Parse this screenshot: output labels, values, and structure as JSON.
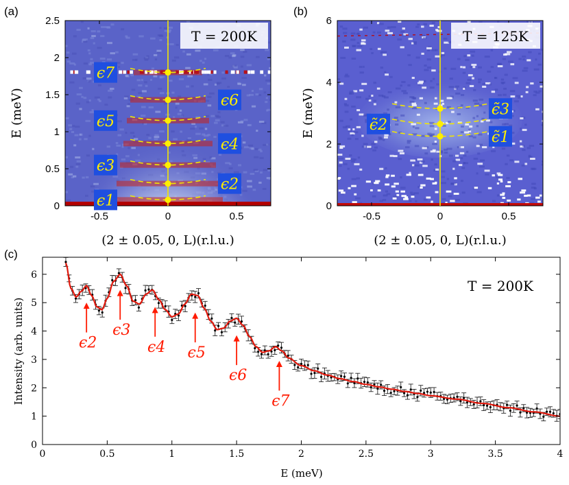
{
  "chart_data": [
    {
      "panel": "(a)",
      "type": "heatmap",
      "annotation": "T = 200K",
      "xlabel": "(2 ± 0.05, 0, L)(r.l.u.)",
      "ylabel": "E (meV)",
      "xlim": [
        -0.75,
        0.75
      ],
      "ylim": [
        0,
        2.5
      ],
      "xticks": [
        "-0.5",
        "0",
        "0.5"
      ],
      "xtick_values": [
        -0.5,
        0,
        0.5
      ],
      "yticks": [
        "0",
        "0.5",
        "1",
        "1.5",
        "2",
        "2.5"
      ],
      "ytick_values": [
        0,
        0.5,
        1,
        1.5,
        2,
        2.5
      ],
      "cut_position": 0,
      "mode_energies": [
        0.08,
        0.3,
        0.55,
        0.84,
        1.15,
        1.43,
        1.8
      ],
      "modes": [
        {
          "label": "ϵ1",
          "energy": 0.08,
          "side": "left"
        },
        {
          "label": "ϵ2",
          "energy": 0.3,
          "side": "right"
        },
        {
          "label": "ϵ3",
          "energy": 0.55,
          "side": "left"
        },
        {
          "label": "ϵ4",
          "energy": 0.84,
          "side": "right"
        },
        {
          "label": "ϵ5",
          "energy": 1.15,
          "side": "left"
        },
        {
          "label": "ϵ6",
          "energy": 1.43,
          "side": "right"
        },
        {
          "label": "ϵ7",
          "energy": 1.8,
          "side": "left"
        }
      ]
    },
    {
      "panel": "(b)",
      "type": "heatmap",
      "annotation": "T = 125K",
      "xlabel": "(2 ± 0.05, 0, L)(r.l.u.)",
      "ylabel": "E (meV)",
      "xlim": [
        -0.75,
        0.75
      ],
      "ylim": [
        0,
        6
      ],
      "xticks": [
        "-0.5",
        "0",
        "0.5"
      ],
      "xtick_values": [
        -0.5,
        0,
        0.5
      ],
      "yticks": [
        "0",
        "2",
        "4",
        "6"
      ],
      "ytick_values": [
        0,
        2,
        4,
        6
      ],
      "cut_position": 0,
      "mode_energies": [
        2.25,
        2.65,
        3.15
      ],
      "modes": [
        {
          "label": "ϵ̃1",
          "energy": 2.25,
          "side": "right"
        },
        {
          "label": "ϵ̃2",
          "energy": 2.65,
          "side": "left"
        },
        {
          "label": "ϵ̃3",
          "energy": 3.15,
          "side": "right"
        }
      ]
    },
    {
      "panel": "(c)",
      "type": "scatter",
      "annotation": "T = 200K",
      "xlabel": "E (meV)",
      "ylabel": "Intensity (arb. units)",
      "xlim": [
        0,
        4
      ],
      "ylim": [
        0,
        6.6
      ],
      "xticks": [
        "0",
        "0.5",
        "1",
        "1.5",
        "2",
        "2.5",
        "3",
        "3.5",
        "4"
      ],
      "xtick_values": [
        0,
        0.5,
        1,
        1.5,
        2,
        2.5,
        3,
        3.5,
        4
      ],
      "yticks": [
        "0",
        "1",
        "2",
        "3",
        "4",
        "5",
        "6"
      ],
      "ytick_values": [
        0,
        1,
        2,
        3,
        4,
        5,
        6
      ],
      "series": [
        {
          "name": "data",
          "style": "black points with error bars",
          "x_start": 0.18,
          "x_end": 4.0,
          "n_points": 150
        },
        {
          "name": "fit",
          "style": "red line"
        }
      ],
      "fit_curve": {
        "x": [
          0.18,
          0.22,
          0.26,
          0.3,
          0.34,
          0.38,
          0.42,
          0.46,
          0.5,
          0.55,
          0.6,
          0.65,
          0.7,
          0.75,
          0.8,
          0.85,
          0.9,
          0.95,
          1.0,
          1.05,
          1.1,
          1.15,
          1.2,
          1.25,
          1.3,
          1.35,
          1.4,
          1.45,
          1.5,
          1.55,
          1.6,
          1.65,
          1.7,
          1.75,
          1.8,
          1.85,
          1.9,
          2.0,
          2.1,
          2.2,
          2.3,
          2.4,
          2.5,
          2.6,
          2.7,
          2.8,
          2.9,
          3.0,
          3.2,
          3.4,
          3.6,
          3.8,
          4.0
        ],
        "y": [
          6.4,
          5.5,
          5.2,
          5.4,
          5.6,
          5.25,
          4.85,
          4.75,
          5.15,
          5.75,
          6.0,
          5.6,
          5.05,
          4.95,
          5.3,
          5.45,
          5.1,
          4.75,
          4.5,
          4.6,
          4.95,
          5.3,
          5.25,
          4.8,
          4.35,
          4.05,
          4.1,
          4.35,
          4.45,
          4.2,
          3.8,
          3.45,
          3.25,
          3.3,
          3.45,
          3.3,
          3.05,
          2.78,
          2.6,
          2.45,
          2.32,
          2.22,
          2.12,
          2.03,
          1.95,
          1.87,
          1.8,
          1.72,
          1.6,
          1.45,
          1.3,
          1.15,
          1.0
        ]
      },
      "markers": [
        {
          "label": "ϵ2",
          "energy": 0.34,
          "intensity": 5.0,
          "label_offset": 0
        },
        {
          "label": "ϵ3",
          "energy": 0.6,
          "intensity": 5.45,
          "label_offset": 0
        },
        {
          "label": "ϵ4",
          "energy": 0.87,
          "intensity": 4.85,
          "label_offset": 0
        },
        {
          "label": "ϵ5",
          "energy": 1.18,
          "intensity": 4.65,
          "label_offset": 0
        },
        {
          "label": "ϵ6",
          "energy": 1.5,
          "intensity": 3.85,
          "label_offset": 0.5
        },
        {
          "label": "ϵ7",
          "energy": 1.83,
          "intensity": 2.95,
          "label_offset": 1.25
        }
      ]
    }
  ]
}
